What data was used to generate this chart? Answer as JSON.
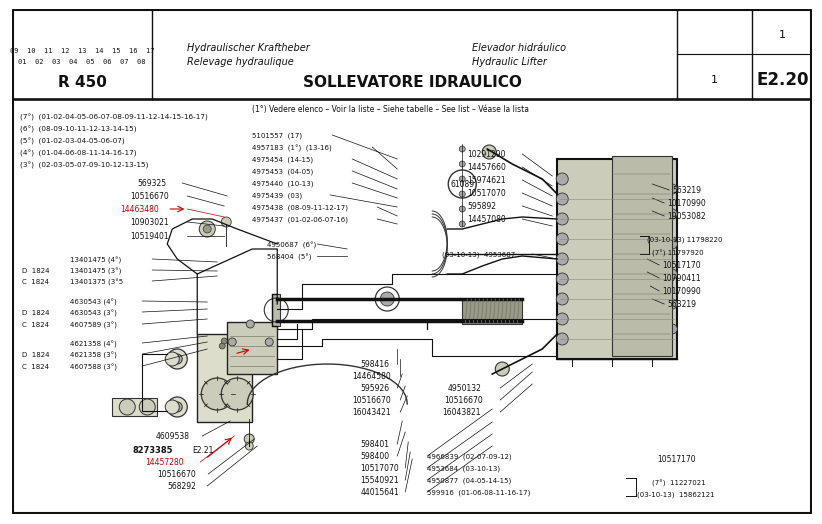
{
  "bg_color": "#ffffff",
  "diagram_bg": "#ffffff",
  "title": "SOLLEVATORE IDRAULICO",
  "subtitle_left": "Relevage hydraulique",
  "subtitle_left2": "Hydraulischer Kraftheber",
  "subtitle_right": "Hydraulic Lifter",
  "subtitle_right2": "Elevador hidráulico",
  "model": "R 450",
  "model_numbers_row1": "01  02  03  04  05  06  07  08",
  "model_numbers_row2": "09  10  11  12  13  14  15  16  17",
  "ref_code": "E2.20",
  "page_num": "1",
  "footer_note": "(1°) Vedere elenco – Voir la liste – Siehe tabelle – See list – Véase la lista"
}
